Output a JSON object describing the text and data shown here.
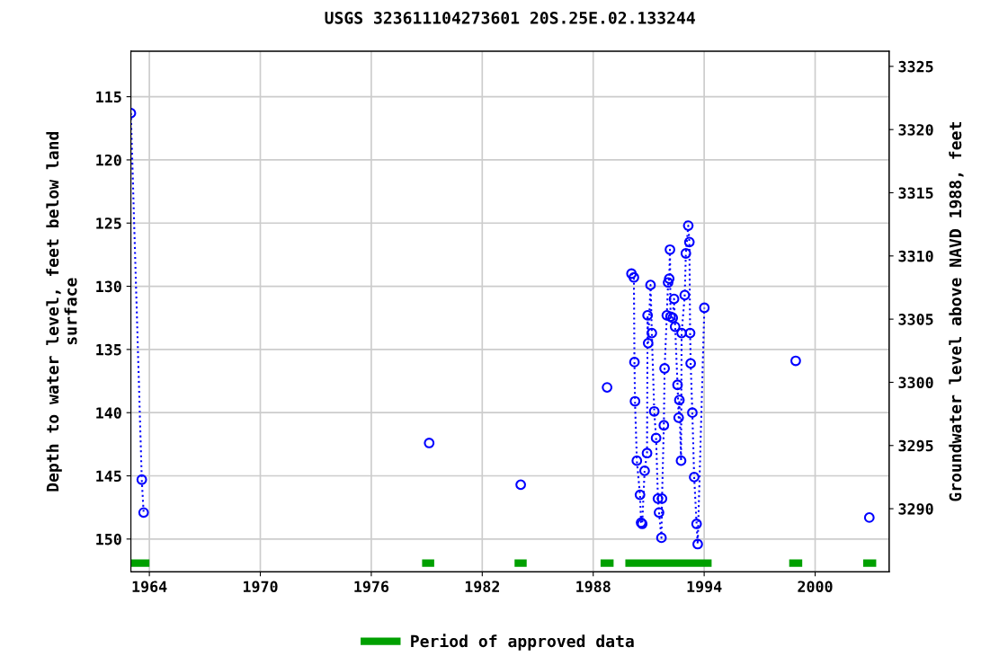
{
  "chart_data": {
    "type": "line",
    "title": "USGS 323611104273601 20S.25E.02.133244",
    "ylabel": "Depth to water level, feet below land\nsurface",
    "y2label": "Groundwater level above NAVD 1988, feet",
    "xlim": [
      1963.0,
      2004.0
    ],
    "xticks": [
      1964,
      1970,
      1976,
      1982,
      1988,
      1994,
      2000
    ],
    "ylim": [
      152.6,
      111.4
    ],
    "yticks": [
      115,
      120,
      125,
      130,
      135,
      140,
      145,
      150
    ],
    "y2lim": [
      3285.0,
      3326.2
    ],
    "y2ticks": [
      3290,
      3295,
      3300,
      3305,
      3310,
      3315,
      3320,
      3325
    ],
    "grid": true,
    "legend": "bottom",
    "series": [
      {
        "color": "#0000ff",
        "marker": "circle",
        "line_style": "dotted",
        "x": [
          1963.0,
          1963.59,
          1963.69,
          1970,
          1979.13,
          1981,
          1984.08,
          1986,
          1988.75,
          1989.5,
          1990.07,
          1990.2,
          1990.23,
          1990.26,
          1990.36,
          1990.53,
          1990.59,
          1990.65,
          1990.78,
          1990.91,
          1990.94,
          1990.97,
          1991.1,
          1991.17,
          1991.3,
          1991.4,
          1991.5,
          1991.56,
          1991.69,
          1991.72,
          1991.82,
          1991.86,
          1991.98,
          1992.05,
          1992.11,
          1992.15,
          1992.18,
          1992.3,
          1992.37,
          1992.43,
          1992.56,
          1992.62,
          1992.66,
          1992.75,
          1992.78,
          1992.95,
          1993.01,
          1993.14,
          1993.2,
          1993.24,
          1993.27,
          1993.36,
          1993.46,
          1993.59,
          1993.65,
          1994.01,
          1996,
          1998.95,
          2001,
          2002.93
        ],
        "values": [
          116.3,
          145.3,
          147.9,
          null,
          142.4,
          null,
          145.7,
          null,
          138.0,
          null,
          129.0,
          129.3,
          136.0,
          139.1,
          143.8,
          146.5,
          148.7,
          148.8,
          144.6,
          143.2,
          132.3,
          134.5,
          129.9,
          133.7,
          139.9,
          142.0,
          146.8,
          147.9,
          149.9,
          146.8,
          141.0,
          136.5,
          132.3,
          129.7,
          129.4,
          127.1,
          132.4,
          132.5,
          131.0,
          133.2,
          137.8,
          140.4,
          139.0,
          143.8,
          133.7,
          130.7,
          127.4,
          125.2,
          126.5,
          133.7,
          136.1,
          140.0,
          145.1,
          148.8,
          150.4,
          131.7,
          null,
          135.9,
          null,
          148.3
        ]
      },
      {
        "name": "Period of approved data",
        "color": "#00a000",
        "marker": "none",
        "line_style": "solid",
        "x": [
          1963.0,
          1963.8,
          1970,
          1978.95,
          1979.2,
          1981,
          1983.95,
          1984.2,
          1986,
          1988.6,
          1988.9,
          1989.5,
          1989.94,
          1994.2,
          1996,
          1998.8,
          1999.1,
          2001,
          2002.8,
          2003.1
        ],
        "values": [
          151.9,
          151.9,
          null,
          151.9,
          151.9,
          null,
          151.9,
          151.9,
          null,
          151.9,
          151.9,
          null,
          151.9,
          151.9,
          null,
          151.9,
          151.9,
          null,
          151.9,
          151.9
        ]
      }
    ]
  }
}
